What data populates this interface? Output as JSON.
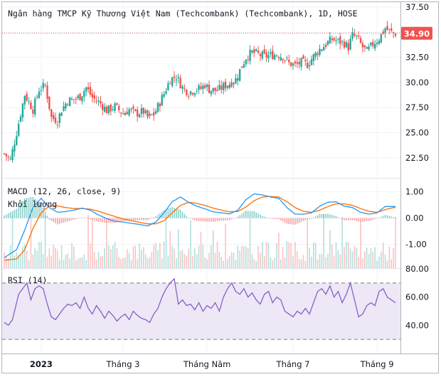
{
  "colors": {
    "up": "#26a69a",
    "down": "#ef5350",
    "macd_line": "#2196f3",
    "signal_line": "#ff6d00",
    "rsi_line": "#7e57c2",
    "rsi_band": "#ede7f6",
    "grid": "#f0f3fa",
    "axis_text": "#131722",
    "price_tag": "#ef5350"
  },
  "icons": {
    "divider": "pane-divider"
  },
  "chart_data": [
    {
      "type": "candlestick",
      "title": "Ngân hàng TMCP Kỹ Thương Việt Nam (Techcombank) (Techcombank), 1D, HOSE",
      "last_price_label": "34.90",
      "last_price": 34.9,
      "y_ticks": [
        "37.50",
        "35.00",
        "32.50",
        "30.00",
        "27.50",
        "25.00",
        "22.50"
      ],
      "ylim": [
        20.5,
        38.0
      ],
      "x_labels": [
        "2023",
        "Tháng 3",
        "Tháng Năm",
        "Tháng 7",
        "Tháng 9"
      ],
      "x_label_index": [
        18,
        58,
        99,
        141,
        182
      ],
      "key_closes": [
        [
          0,
          22.9
        ],
        [
          3,
          22.3
        ],
        [
          6,
          25.0
        ],
        [
          10,
          28.8
        ],
        [
          14,
          27.3
        ],
        [
          17,
          29.3
        ],
        [
          20,
          29.7
        ],
        [
          23,
          26.5
        ],
        [
          26,
          26.2
        ],
        [
          28,
          27.3
        ],
        [
          31,
          28.2
        ],
        [
          34,
          28.3
        ],
        [
          37,
          28.6
        ],
        [
          40,
          29.5
        ],
        [
          43,
          28.5
        ],
        [
          47,
          27.9
        ],
        [
          50,
          27.2
        ],
        [
          54,
          27.6
        ],
        [
          58,
          26.9
        ],
        [
          61,
          27.3
        ],
        [
          64,
          26.9
        ],
        [
          68,
          27.1
        ],
        [
          70,
          26.5
        ],
        [
          73,
          26.8
        ],
        [
          75,
          27.6
        ],
        [
          78,
          28.9
        ],
        [
          81,
          30.3
        ],
        [
          84,
          30.6
        ],
        [
          87,
          29.5
        ],
        [
          90,
          29.0
        ],
        [
          93,
          29.3
        ],
        [
          96,
          29.4
        ],
        [
          98,
          29.8
        ],
        [
          100,
          29.3
        ],
        [
          104,
          29.2
        ],
        [
          107,
          29.6
        ],
        [
          110,
          29.9
        ],
        [
          113,
          30.3
        ],
        [
          115,
          31.2
        ],
        [
          118,
          32.5
        ],
        [
          121,
          33.0
        ],
        [
          124,
          32.8
        ],
        [
          127,
          32.6
        ],
        [
          130,
          32.7
        ],
        [
          133,
          32.8
        ],
        [
          136,
          32.6
        ],
        [
          139,
          31.9
        ],
        [
          142,
          31.7
        ],
        [
          145,
          32.0
        ],
        [
          148,
          31.8
        ],
        [
          151,
          32.6
        ],
        [
          154,
          33.3
        ],
        [
          157,
          33.8
        ],
        [
          160,
          34.3
        ],
        [
          163,
          34.1
        ],
        [
          166,
          33.9
        ],
        [
          168,
          33.5
        ],
        [
          170,
          34.7
        ],
        [
          172,
          34.5
        ],
        [
          175,
          33.5
        ],
        [
          177,
          33.1
        ],
        [
          180,
          33.8
        ],
        [
          183,
          34.4
        ],
        [
          186,
          35.4
        ],
        [
          188,
          35.1
        ],
        [
          190,
          34.9
        ]
      ]
    },
    {
      "type": "line",
      "title": "MACD (12, 26, close, 9)",
      "y_ticks": [
        "1.00",
        "0.00",
        "-1.00"
      ],
      "ylim": [
        -1.9,
        1.5
      ],
      "series": [
        {
          "key": "macd",
          "points": [
            [
              0,
              -1.5
            ],
            [
              6,
              -1.2
            ],
            [
              10,
              -0.45
            ],
            [
              14,
              0.4
            ],
            [
              18,
              0.75
            ],
            [
              22,
              0.4
            ],
            [
              26,
              0.22
            ],
            [
              30,
              0.25
            ],
            [
              34,
              0.3
            ],
            [
              38,
              0.38
            ],
            [
              42,
              0.3
            ],
            [
              46,
              0.12
            ],
            [
              50,
              -0.02
            ],
            [
              54,
              -0.12
            ],
            [
              58,
              -0.15
            ],
            [
              62,
              -0.2
            ],
            [
              66,
              -0.24
            ],
            [
              70,
              -0.3
            ],
            [
              74,
              -0.15
            ],
            [
              78,
              0.2
            ],
            [
              82,
              0.62
            ],
            [
              86,
              0.8
            ],
            [
              90,
              0.6
            ],
            [
              94,
              0.45
            ],
            [
              98,
              0.35
            ],
            [
              102,
              0.24
            ],
            [
              106,
              0.2
            ],
            [
              110,
              0.16
            ],
            [
              114,
              0.3
            ],
            [
              118,
              0.7
            ],
            [
              122,
              0.92
            ],
            [
              126,
              0.88
            ],
            [
              130,
              0.8
            ],
            [
              134,
              0.75
            ],
            [
              138,
              0.4
            ],
            [
              142,
              0.15
            ],
            [
              146,
              0.15
            ],
            [
              150,
              0.2
            ],
            [
              154,
              0.45
            ],
            [
              158,
              0.6
            ],
            [
              162,
              0.62
            ],
            [
              166,
              0.45
            ],
            [
              170,
              0.4
            ],
            [
              174,
              0.22
            ],
            [
              178,
              0.15
            ],
            [
              182,
              0.2
            ],
            [
              186,
              0.44
            ],
            [
              190,
              0.44
            ]
          ]
        },
        {
          "key": "signal",
          "points": [
            [
              0,
              -1.6
            ],
            [
              6,
              -1.55
            ],
            [
              10,
              -1.2
            ],
            [
              14,
              -0.4
            ],
            [
              18,
              0.2
            ],
            [
              22,
              0.46
            ],
            [
              26,
              0.46
            ],
            [
              30,
              0.4
            ],
            [
              34,
              0.36
            ],
            [
              38,
              0.36
            ],
            [
              42,
              0.34
            ],
            [
              46,
              0.26
            ],
            [
              50,
              0.16
            ],
            [
              54,
              0.06
            ],
            [
              58,
              -0.03
            ],
            [
              62,
              -0.1
            ],
            [
              66,
              -0.16
            ],
            [
              70,
              -0.22
            ],
            [
              74,
              -0.22
            ],
            [
              78,
              -0.1
            ],
            [
              82,
              0.2
            ],
            [
              86,
              0.48
            ],
            [
              90,
              0.6
            ],
            [
              94,
              0.56
            ],
            [
              98,
              0.48
            ],
            [
              102,
              0.38
            ],
            [
              106,
              0.3
            ],
            [
              110,
              0.24
            ],
            [
              114,
              0.25
            ],
            [
              118,
              0.42
            ],
            [
              122,
              0.66
            ],
            [
              126,
              0.8
            ],
            [
              130,
              0.82
            ],
            [
              134,
              0.8
            ],
            [
              138,
              0.62
            ],
            [
              142,
              0.4
            ],
            [
              146,
              0.26
            ],
            [
              150,
              0.22
            ],
            [
              154,
              0.3
            ],
            [
              158,
              0.44
            ],
            [
              162,
              0.54
            ],
            [
              166,
              0.54
            ],
            [
              170,
              0.48
            ],
            [
              174,
              0.36
            ],
            [
              178,
              0.26
            ],
            [
              182,
              0.22
            ],
            [
              186,
              0.32
            ],
            [
              190,
              0.4
            ]
          ]
        }
      ]
    },
    {
      "type": "bar",
      "title": "Khối lượng",
      "note": "Volume histogram overlaid on the MACD pane"
    },
    {
      "type": "line",
      "title": "RSI (14)",
      "y_ticks": [
        "80.00",
        "60.00",
        "40.00"
      ],
      "ylim": [
        20,
        80
      ],
      "band": [
        30,
        70
      ],
      "points": [
        [
          0,
          42
        ],
        [
          2,
          40
        ],
        [
          4,
          44
        ],
        [
          7,
          62
        ],
        [
          9,
          66
        ],
        [
          11,
          70
        ],
        [
          13,
          58
        ],
        [
          15,
          66
        ],
        [
          17,
          68
        ],
        [
          19,
          66
        ],
        [
          21,
          55
        ],
        [
          23,
          46
        ],
        [
          25,
          44
        ],
        [
          27,
          48
        ],
        [
          29,
          52
        ],
        [
          31,
          55
        ],
        [
          33,
          54
        ],
        [
          35,
          56
        ],
        [
          37,
          52
        ],
        [
          39,
          60
        ],
        [
          41,
          52
        ],
        [
          43,
          48
        ],
        [
          45,
          54
        ],
        [
          47,
          50
        ],
        [
          49,
          45
        ],
        [
          51,
          50
        ],
        [
          53,
          47
        ],
        [
          55,
          43
        ],
        [
          57,
          46
        ],
        [
          59,
          48
        ],
        [
          61,
          44
        ],
        [
          63,
          50
        ],
        [
          65,
          47
        ],
        [
          67,
          45
        ],
        [
          69,
          44
        ],
        [
          71,
          42
        ],
        [
          73,
          48
        ],
        [
          75,
          52
        ],
        [
          77,
          60
        ],
        [
          79,
          66
        ],
        [
          81,
          70
        ],
        [
          83,
          73
        ],
        [
          85,
          55
        ],
        [
          87,
          58
        ],
        [
          89,
          54
        ],
        [
          91,
          55
        ],
        [
          93,
          51
        ],
        [
          95,
          56
        ],
        [
          97,
          50
        ],
        [
          99,
          54
        ],
        [
          101,
          52
        ],
        [
          103,
          56
        ],
        [
          105,
          50
        ],
        [
          107,
          60
        ],
        [
          109,
          66
        ],
        [
          111,
          70
        ],
        [
          113,
          64
        ],
        [
          115,
          62
        ],
        [
          117,
          66
        ],
        [
          119,
          60
        ],
        [
          121,
          63
        ],
        [
          123,
          58
        ],
        [
          125,
          55
        ],
        [
          127,
          62
        ],
        [
          129,
          64
        ],
        [
          131,
          56
        ],
        [
          133,
          60
        ],
        [
          135,
          58
        ],
        [
          137,
          50
        ],
        [
          139,
          48
        ],
        [
          141,
          46
        ],
        [
          143,
          50
        ],
        [
          145,
          48
        ],
        [
          147,
          52
        ],
        [
          149,
          48
        ],
        [
          151,
          56
        ],
        [
          153,
          64
        ],
        [
          155,
          66
        ],
        [
          157,
          62
        ],
        [
          159,
          68
        ],
        [
          161,
          60
        ],
        [
          163,
          64
        ],
        [
          165,
          56
        ],
        [
          167,
          62
        ],
        [
          169,
          70
        ],
        [
          171,
          58
        ],
        [
          173,
          46
        ],
        [
          175,
          48
        ],
        [
          177,
          54
        ],
        [
          179,
          56
        ],
        [
          181,
          54
        ],
        [
          183,
          64
        ],
        [
          185,
          66
        ],
        [
          187,
          60
        ],
        [
          189,
          58
        ],
        [
          191,
          56
        ]
      ]
    }
  ]
}
